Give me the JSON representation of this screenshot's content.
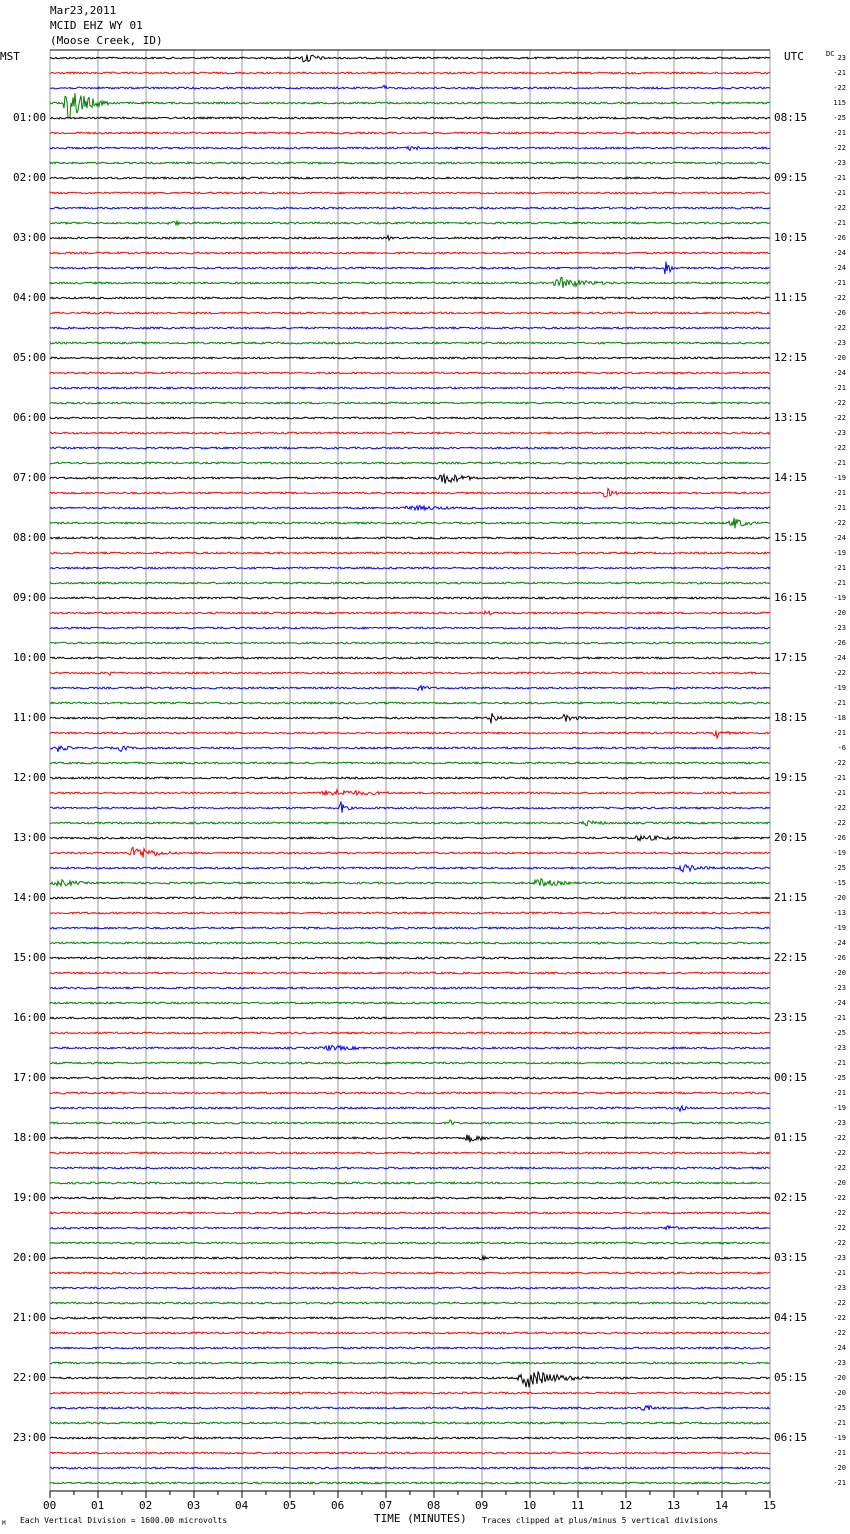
{
  "header": {
    "date": "Mar23,2011",
    "station": "MCID EHZ WY 01",
    "location": "(Moose Creek, ID)"
  },
  "axes": {
    "left_zone": "MST",
    "right_zone": "UTC",
    "dc_label": "DC"
  },
  "footer": {
    "corner_mark": "M",
    "scale_note": "Each Vertical Division = 1600.00 microvolts",
    "xlabel": "TIME (MINUTES)",
    "clip_note": "Traces clipped at plus/minus 5 vertical divisions"
  },
  "chart_data": {
    "type": "line",
    "title": "",
    "xlabel": "TIME (MINUTES)",
    "xlim": [
      0,
      15
    ],
    "x_ticks": [
      "00",
      "01",
      "02",
      "03",
      "04",
      "05",
      "06",
      "07",
      "08",
      "09",
      "10",
      "11",
      "12",
      "13",
      "14",
      "15"
    ],
    "minutes_per_trace": 15,
    "trace_colors": [
      "#000000",
      "#ff0000",
      "#0000ff",
      "#007f00"
    ],
    "mst_labels": [
      "01:00",
      "02:00",
      "03:00",
      "04:00",
      "05:00",
      "06:00",
      "07:00",
      "08:00",
      "09:00",
      "10:00",
      "11:00",
      "12:00",
      "13:00",
      "14:00",
      "15:00",
      "16:00",
      "17:00",
      "18:00",
      "19:00",
      "20:00",
      "21:00",
      "22:00",
      "23:00"
    ],
    "utc_labels": [
      "08:15",
      "09:15",
      "10:15",
      "11:15",
      "12:15",
      "13:15",
      "14:15",
      "15:15",
      "16:15",
      "17:15",
      "18:15",
      "19:15",
      "20:15",
      "21:15",
      "22:15",
      "23:15",
      "00:15",
      "01:15",
      "02:15",
      "03:15",
      "04:15",
      "05:15",
      "06:15"
    ],
    "dc_offsets": [
      23,
      -21,
      -22,
      115,
      -25,
      -21,
      -22,
      -23,
      -21,
      -21,
      -22,
      -21,
      -26,
      -24,
      -24,
      -21,
      -22,
      -26,
      -22,
      -23,
      -20,
      -24,
      -21,
      -22,
      -22,
      -23,
      -22,
      -21,
      -19,
      -21,
      -21,
      -22,
      -24,
      -19,
      -21,
      -21,
      -19,
      -20,
      -23,
      -26,
      -24,
      -22,
      -19,
      -21,
      -18,
      -21,
      -6,
      -22,
      -21,
      -21,
      -22,
      -22,
      -26,
      -19,
      -25,
      -15,
      -20,
      -13,
      -19,
      -24,
      -26,
      -20,
      -23,
      -24,
      -21,
      -25,
      -23,
      -21,
      -25,
      -21,
      -19,
      -23,
      -22,
      -22,
      -22,
      -20,
      -22,
      -22,
      -22,
      -22,
      -23,
      -21,
      -23,
      -22,
      -22,
      -22,
      -24,
      -23,
      -20,
      -20,
      -25,
      -21,
      -19,
      -21,
      -20,
      -21
    ],
    "events": [
      {
        "trace": 0,
        "minute": 5.2,
        "duration": 0.8,
        "amp": 7
      },
      {
        "trace": 2,
        "minute": 6.9,
        "duration": 0.3,
        "amp": 4
      },
      {
        "trace": 3,
        "minute": 0.25,
        "duration": 1.2,
        "amp": 18
      },
      {
        "trace": 6,
        "minute": 7.4,
        "duration": 0.9,
        "amp": 3
      },
      {
        "trace": 11,
        "minute": 2.4,
        "duration": 1.0,
        "amp": 3
      },
      {
        "trace": 12,
        "minute": 7.0,
        "duration": 0.4,
        "amp": 3
      },
      {
        "trace": 14,
        "minute": 12.8,
        "duration": 0.2,
        "amp": 18
      },
      {
        "trace": 15,
        "minute": 10.4,
        "duration": 2.0,
        "amp": 6
      },
      {
        "trace": 28,
        "minute": 8.0,
        "duration": 1.4,
        "amp": 7
      },
      {
        "trace": 29,
        "minute": 11.5,
        "duration": 0.6,
        "amp": 6
      },
      {
        "trace": 30,
        "minute": 7.2,
        "duration": 2.8,
        "amp": 3
      },
      {
        "trace": 31,
        "minute": 14.1,
        "duration": 0.9,
        "amp": 7
      },
      {
        "trace": 37,
        "minute": 9.0,
        "duration": 0.6,
        "amp": 3
      },
      {
        "trace": 41,
        "minute": 1.2,
        "duration": 0.4,
        "amp": 3
      },
      {
        "trace": 42,
        "minute": 7.6,
        "duration": 0.6,
        "amp": 4
      },
      {
        "trace": 44,
        "minute": 9.1,
        "duration": 0.5,
        "amp": 7
      },
      {
        "trace": 44,
        "minute": 10.6,
        "duration": 1.0,
        "amp": 4
      },
      {
        "trace": 45,
        "minute": 13.8,
        "duration": 0.6,
        "amp": 6
      },
      {
        "trace": 46,
        "minute": 0.1,
        "duration": 0.6,
        "amp": 5
      },
      {
        "trace": 46,
        "minute": 1.4,
        "duration": 0.6,
        "amp": 4
      },
      {
        "trace": 49,
        "minute": 5.5,
        "duration": 3.0,
        "amp": 4
      },
      {
        "trace": 50,
        "minute": 6.0,
        "duration": 0.4,
        "amp": 8
      },
      {
        "trace": 51,
        "minute": 11.0,
        "duration": 1.5,
        "amp": 3
      },
      {
        "trace": 52,
        "minute": 12.0,
        "duration": 2.5,
        "amp": 3
      },
      {
        "trace": 53,
        "minute": 1.6,
        "duration": 1.4,
        "amp": 8
      },
      {
        "trace": 54,
        "minute": 13.0,
        "duration": 1.6,
        "amp": 4
      },
      {
        "trace": 55,
        "minute": 0.0,
        "duration": 1.5,
        "amp": 4
      },
      {
        "trace": 55,
        "minute": 10.0,
        "duration": 1.5,
        "amp": 5
      },
      {
        "trace": 66,
        "minute": 5.5,
        "duration": 2.5,
        "amp": 3
      },
      {
        "trace": 70,
        "minute": 13.1,
        "duration": 0.3,
        "amp": 5
      },
      {
        "trace": 71,
        "minute": 8.3,
        "duration": 0.3,
        "amp": 4
      },
      {
        "trace": 72,
        "minute": 8.6,
        "duration": 1.0,
        "amp": 5
      },
      {
        "trace": 78,
        "minute": 12.8,
        "duration": 0.6,
        "amp": 4
      },
      {
        "trace": 80,
        "minute": 8.9,
        "duration": 0.8,
        "amp": 3
      },
      {
        "trace": 88,
        "minute": 9.7,
        "duration": 2.0,
        "amp": 10
      },
      {
        "trace": 90,
        "minute": 12.2,
        "duration": 1.0,
        "amp": 4
      }
    ]
  }
}
